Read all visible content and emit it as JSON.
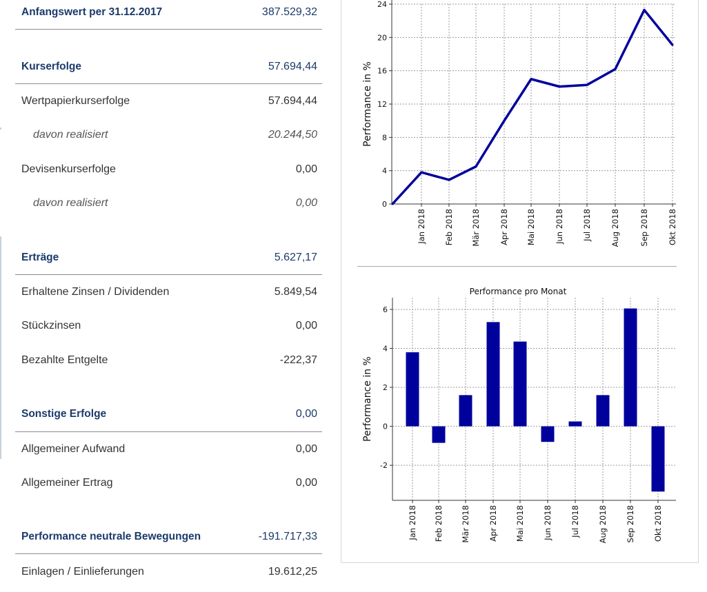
{
  "table": {
    "rows": [
      {
        "label": "Anfangswert per 31.12.2017",
        "value": "387.529,32",
        "kind": "head"
      },
      {
        "label": "Kurserfolge",
        "value": "57.694,44",
        "kind": "head"
      },
      {
        "label": "Wertpapierkurserfolge",
        "value": "57.694,44",
        "kind": "item"
      },
      {
        "label": "davon realisiert",
        "value": "20.244,50",
        "kind": "sub"
      },
      {
        "label": "Devisenkurserfolge",
        "value": "0,00",
        "kind": "item"
      },
      {
        "label": "davon realisiert",
        "value": "0,00",
        "kind": "sub"
      },
      {
        "label": "Erträge",
        "value": "5.627,17",
        "kind": "head"
      },
      {
        "label": "Erhaltene Zinsen / Dividenden",
        "value": "5.849,54",
        "kind": "item"
      },
      {
        "label": "Stückzinsen",
        "value": "0,00",
        "kind": "item"
      },
      {
        "label": "Bezahlte Entgelte",
        "value": "-222,37",
        "kind": "item"
      },
      {
        "label": "Sonstige Erfolge",
        "value": "0,00",
        "kind": "head"
      },
      {
        "label": "Allgemeiner Aufwand",
        "value": "0,00",
        "kind": "item"
      },
      {
        "label": "Allgemeiner Ertrag",
        "value": "0,00",
        "kind": "item"
      },
      {
        "label": "Performance neutrale Bewegungen",
        "value": "-191.717,33",
        "kind": "head"
      },
      {
        "label": "Einlagen / Einlieferungen",
        "value": "19.612,25",
        "kind": "item"
      }
    ]
  },
  "colors": {
    "series": "#00009c",
    "header": "#1b3a6b",
    "grid": "#9a9a9a"
  },
  "chart_data": [
    {
      "type": "line",
      "title": "",
      "xlabel": "",
      "ylabel": "Performance in %",
      "categories": [
        "",
        "Jan 2018",
        "Feb 2018",
        "Mär 2018",
        "Apr 2018",
        "Mai 2018",
        "Jun 2018",
        "Jul 2018",
        "Aug 2018",
        "Sep 2018",
        "Okt 2018"
      ],
      "values": [
        0,
        3.8,
        2.9,
        4.5,
        10,
        15,
        14.1,
        14.3,
        16.2,
        23.3,
        19.1
      ],
      "ylim": [
        0,
        24
      ],
      "yticks": [
        0,
        4,
        8,
        12,
        16,
        20,
        24
      ],
      "grid": true
    },
    {
      "type": "bar",
      "title": "Performance pro Monat",
      "xlabel": "",
      "ylabel": "Performance in %",
      "categories": [
        "Jan 2018",
        "Feb 2018",
        "Mär 2018",
        "Apr 2018",
        "Mai 2018",
        "Jun 2018",
        "Jul 2018",
        "Aug 2018",
        "Sep 2018",
        "Okt 2018"
      ],
      "values": [
        3.8,
        -0.85,
        1.6,
        5.35,
        4.35,
        -0.8,
        0.25,
        1.6,
        6.05,
        -3.35
      ],
      "ylim": [
        -3.8,
        6.6
      ],
      "yticks": [
        -2,
        0,
        2,
        4,
        6
      ],
      "grid": true
    }
  ]
}
